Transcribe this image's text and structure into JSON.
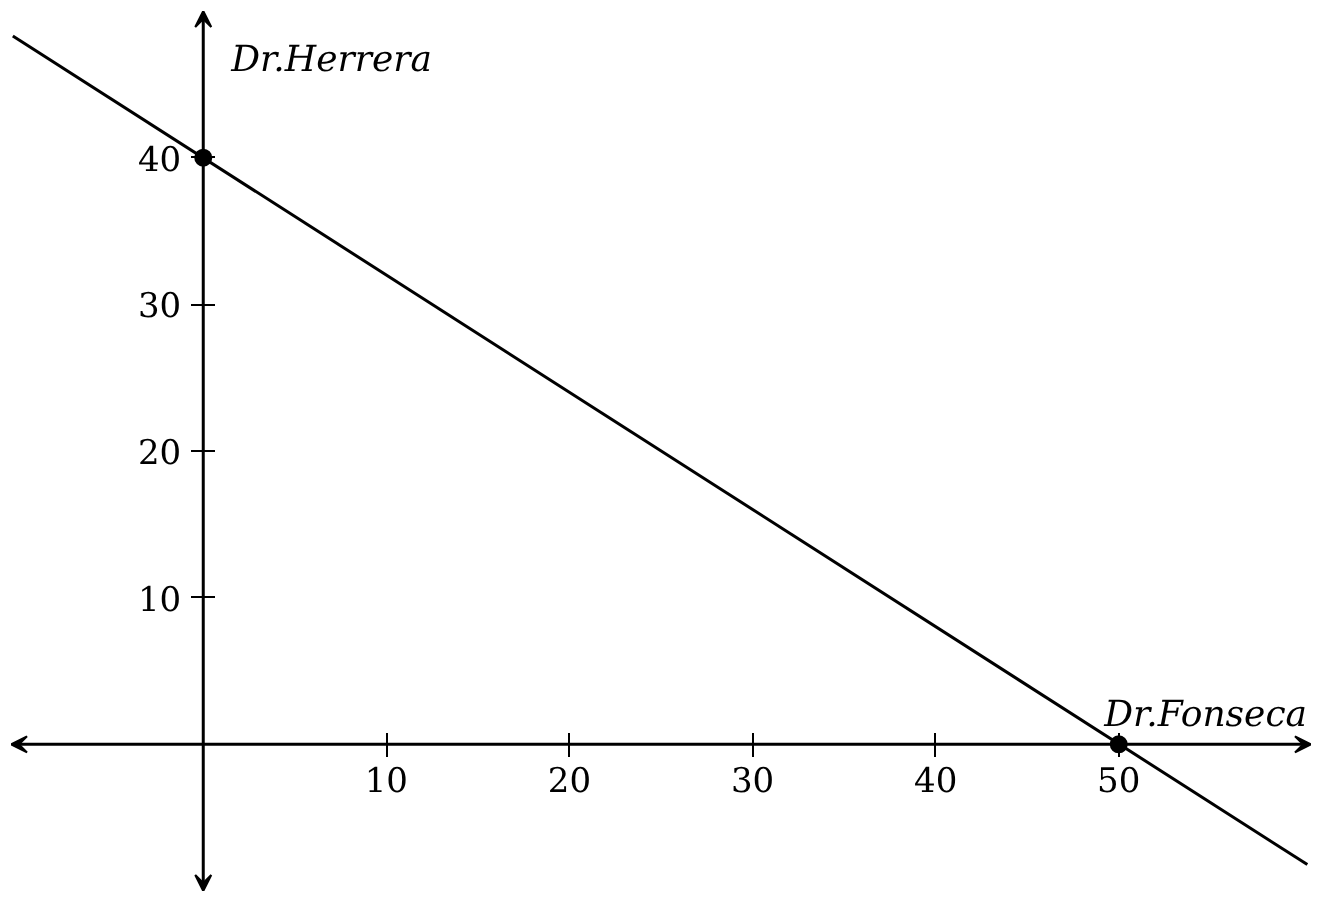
{
  "chart_data": {
    "type": "line",
    "xlabel": "Dr.Fonseca",
    "ylabel": "Dr.Herrera",
    "xlim": [
      -10.5,
      60.5
    ],
    "ylim": [
      -10,
      50
    ],
    "xticks": [
      10,
      20,
      30,
      40,
      50
    ],
    "yticks": [
      10,
      20,
      30,
      40
    ],
    "grid": false,
    "series": [
      {
        "color": "#000000",
        "x": [
          -10.4,
          60.3
        ],
        "values": [
          48.3,
          -8.2
        ]
      },
      {
        "type": "scatter",
        "color": "#000000",
        "marker": "circle",
        "x": [
          0,
          50
        ],
        "values": [
          40,
          0
        ]
      }
    ]
  }
}
